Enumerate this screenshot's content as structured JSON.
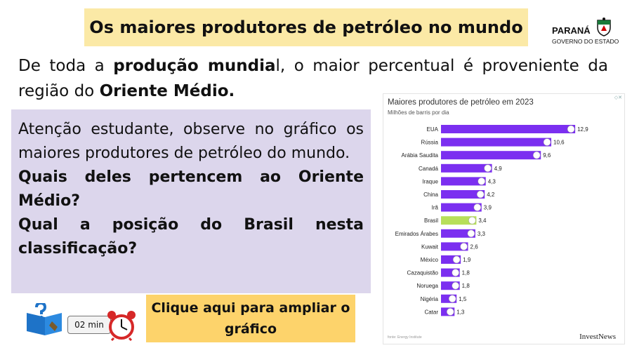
{
  "header": {
    "title": "Os maiores produtores de petróleo no mundo"
  },
  "logo": {
    "line1": "PARANÁ",
    "line2": "GOVERNO DO ESTADO"
  },
  "intro": {
    "p1": "De toda a ",
    "p1_bold": "produção mundia",
    "p1_rest": "l, o maior percentual é proveniente da região do ",
    "p1_bold2": "Oriente Médio."
  },
  "task": {
    "line1": "Atenção estudante, observe no gráfico os maiores produtores de petróleo do mundo.",
    "q1": "Quais deles pertencem ao Oriente Médio?",
    "q2": "Qual a posição do Brasil nesta classificação?"
  },
  "footer": {
    "timer": "02 min",
    "click_label": "Clique aqui para ampliar o gráfico"
  },
  "chart_data": {
    "type": "bar",
    "orientation": "horizontal",
    "title": "Maiores produtores de petróleo em 2023",
    "subtitle": "Milhões de barris por dia",
    "categories": [
      "EUA",
      "Rússia",
      "Arábia Saudita",
      "Canadá",
      "Iraque",
      "China",
      "Irã",
      "Brasil",
      "Emirados Árabes",
      "Kuwait",
      "México",
      "Cazaquistão",
      "Noruega",
      "Nigéria",
      "Catar"
    ],
    "values": [
      12.9,
      10.6,
      9.6,
      4.9,
      4.3,
      4.2,
      3.9,
      3.4,
      3.3,
      2.6,
      1.9,
      1.8,
      1.8,
      1.5,
      1.3
    ],
    "value_labels": [
      "12,9",
      "10,6",
      "9,6",
      "4,9",
      "4,3",
      "4,2",
      "3,9",
      "3,4",
      "3,3",
      "2,6",
      "1,9",
      "1,8",
      "1,8",
      "1,5",
      "1,3"
    ],
    "bar_color": "#7b2ff0",
    "highlight_color": "#b7df5a",
    "highlight_category": "Brasil",
    "source": "fonte: Energy Institute",
    "brand": "InvestNews",
    "xlim": [
      0,
      13.5
    ]
  }
}
